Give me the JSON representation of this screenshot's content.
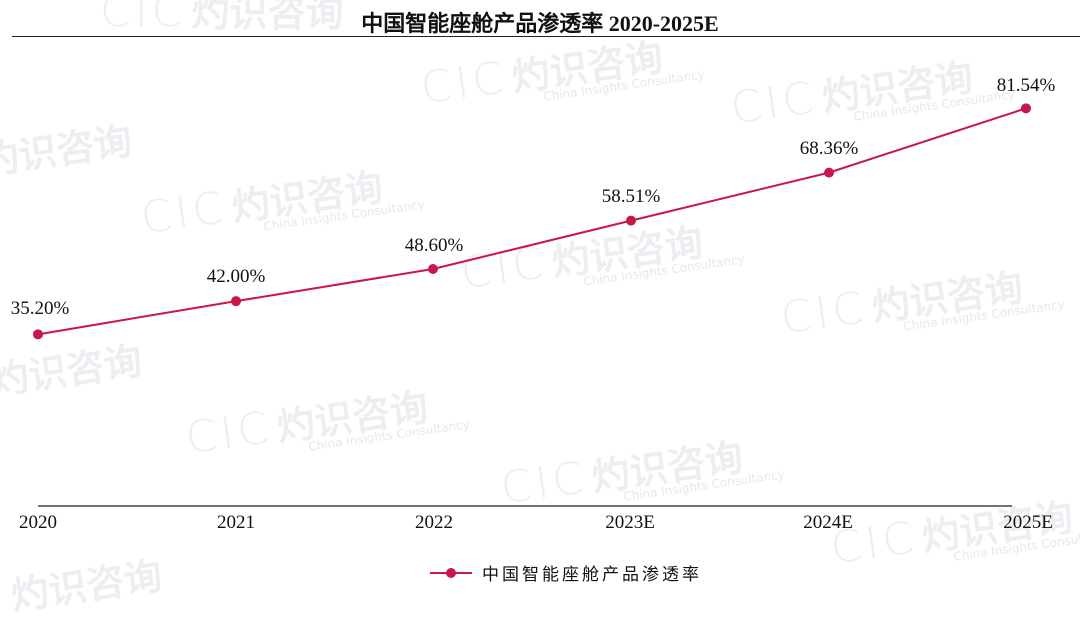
{
  "title": "中国智能座舱产品渗透率 2020-2025E",
  "colors": {
    "series": "#c8174a",
    "axis": "#222222",
    "text": "#111111"
  },
  "watermark": {
    "logo": "CIC",
    "cn": "灼识咨询",
    "en": "China Insights Consultancy"
  },
  "legend": {
    "label": "中国智能座舱产品渗透率"
  },
  "x_labels": [
    "2020",
    "2021",
    "2022",
    "2023E",
    "2024E",
    "2025E"
  ],
  "data_labels": [
    "35.20%",
    "42.00%",
    "48.60%",
    "58.51%",
    "68.36%",
    "81.54%"
  ],
  "chart_data": {
    "type": "line",
    "title": "中国智能座舱产品渗透率 2020-2025E",
    "xlabel": "",
    "ylabel": "",
    "categories": [
      "2020",
      "2021",
      "2022",
      "2023E",
      "2024E",
      "2025E"
    ],
    "series": [
      {
        "name": "中国智能座舱产品渗透率",
        "values": [
          35.2,
          42.0,
          48.6,
          58.51,
          68.36,
          81.54
        ],
        "unit": "%"
      }
    ],
    "ylim": [
      0,
      90
    ],
    "grid": false,
    "legend_position": "bottom",
    "data_labels": true
  }
}
